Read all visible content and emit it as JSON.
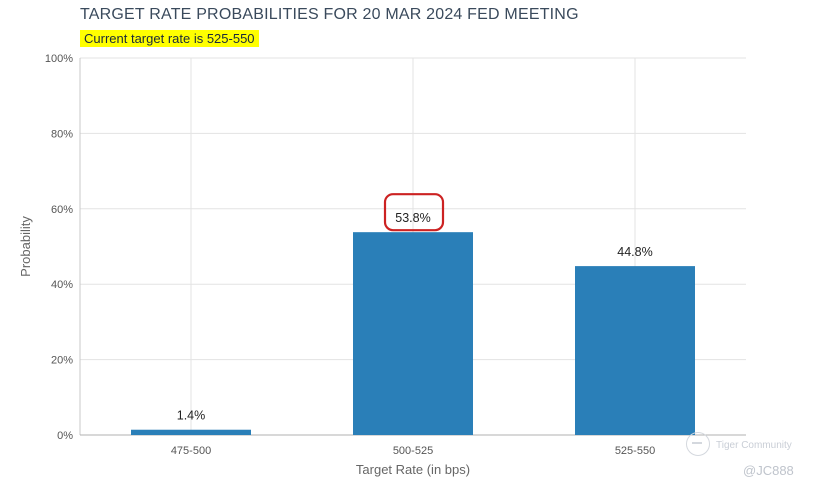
{
  "header": {
    "title": "TARGET RATE PROBABILITIES FOR 20 MAR 2024 FED MEETING",
    "current_rate_note": "Current target rate is 525-550"
  },
  "chart_data": {
    "type": "bar",
    "categories": [
      "475-500",
      "500-525",
      "525-550"
    ],
    "values": [
      1.4,
      53.8,
      44.8
    ],
    "value_labels": [
      "1.4%",
      "53.8%",
      "44.8%"
    ],
    "xlabel": "Target Rate (in bps)",
    "ylabel": "Probability",
    "ylim": [
      0,
      100
    ],
    "yticks": [
      "0%",
      "20%",
      "40%",
      "60%",
      "80%",
      "100%"
    ],
    "ytick_values": [
      0,
      20,
      40,
      60,
      80,
      100
    ],
    "grid": true,
    "bar_color": "#2a7fb8",
    "highlight": {
      "category": "500-525",
      "color": "#cc2222"
    }
  },
  "watermark": {
    "brand": "Tiger Community",
    "handle": "@JC888"
  }
}
